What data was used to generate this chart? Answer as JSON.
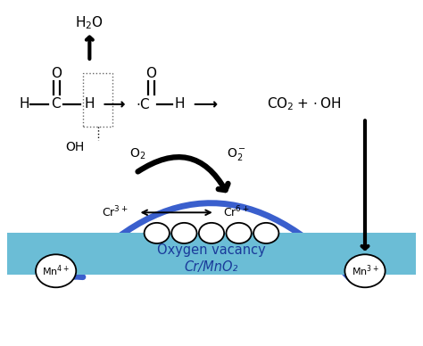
{
  "fig_width": 4.74,
  "fig_height": 3.88,
  "dpi": 100,
  "bg_color": "#ffffff",
  "blue_band_color": "#6bbdd6",
  "blue_text_color": "#1a3a9a",
  "oxygen_vacancy": "Oxygen vacancy",
  "cr_mno2": "Cr/MnO₂",
  "h2o": "H₂O",
  "o2": "O₂",
  "o2_minus": "O₂⁻",
  "cr3": "Cr³⁺",
  "cr6": "Cr⁶⁺",
  "mn4": "Mn⁴⁺",
  "mn3": "Mn³⁺",
  "oh": "OH",
  "arrow_black": "#000000",
  "arrow_blue": "#3a5fcd"
}
